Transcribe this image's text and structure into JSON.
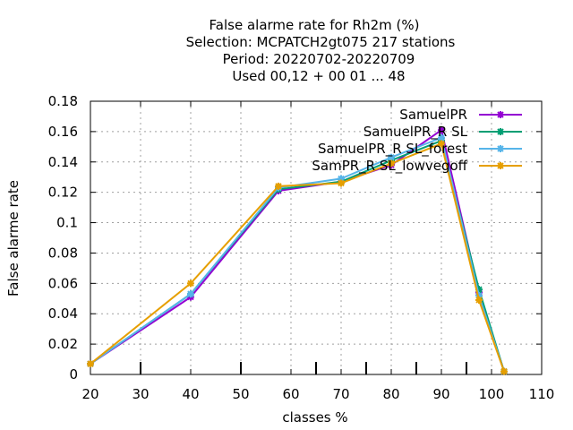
{
  "chart_data": {
    "type": "line",
    "title_lines": [
      "False alarme rate  for Rh2m (%)",
      "Selection: MCPATCH2gt075    217 stations",
      "Period: 20220702-20220709",
      "Used  00,12  + 00 01 ... 48"
    ],
    "xlabel": "classes %",
    "ylabel": "False alarme rate",
    "xlim": [
      20,
      110
    ],
    "ylim": [
      0,
      0.18
    ],
    "xticks": [
      20,
      30,
      40,
      50,
      60,
      70,
      80,
      90,
      100,
      110
    ],
    "yticks": [
      0,
      0.02,
      0.04,
      0.06,
      0.08,
      0.1,
      0.12,
      0.14,
      0.16,
      0.18
    ],
    "xtick_labels": [
      "20",
      "30",
      "40",
      "50",
      "60",
      "70",
      "80",
      "90",
      "100",
      "110"
    ],
    "ytick_labels": [
      "0",
      "0.02",
      "0.04",
      "0.06",
      "0.08",
      "0.1",
      "0.12",
      "0.14",
      "0.16",
      "0.18"
    ],
    "minor_marks_x": [
      30,
      50,
      65,
      75,
      85,
      95
    ],
    "grid": true,
    "legend_position": "top-right",
    "x": [
      20,
      40,
      57.5,
      70,
      80,
      90,
      97.5,
      102.5
    ],
    "series": [
      {
        "name": "SamuelPR",
        "color": "#9400d3",
        "values": [
          0.007,
          0.051,
          0.121,
          0.127,
          0.138,
          0.161,
          0.054,
          0.002
        ]
      },
      {
        "name": "SamuelPR_R SL",
        "color": "#009e73",
        "values": [
          0.007,
          0.053,
          0.122,
          0.127,
          0.141,
          0.154,
          0.056,
          0.002
        ]
      },
      {
        "name": "SamuelPR_R SL_forest",
        "color": "#56b4e9",
        "values": [
          0.007,
          0.053,
          0.123,
          0.129,
          0.143,
          0.156,
          0.052,
          0.002
        ]
      },
      {
        "name": "SamPR_R SL_lowvegoff",
        "color": "#e69f00",
        "values": [
          0.007,
          0.06,
          0.124,
          0.126,
          0.139,
          0.152,
          0.049,
          0.002
        ]
      }
    ]
  }
}
